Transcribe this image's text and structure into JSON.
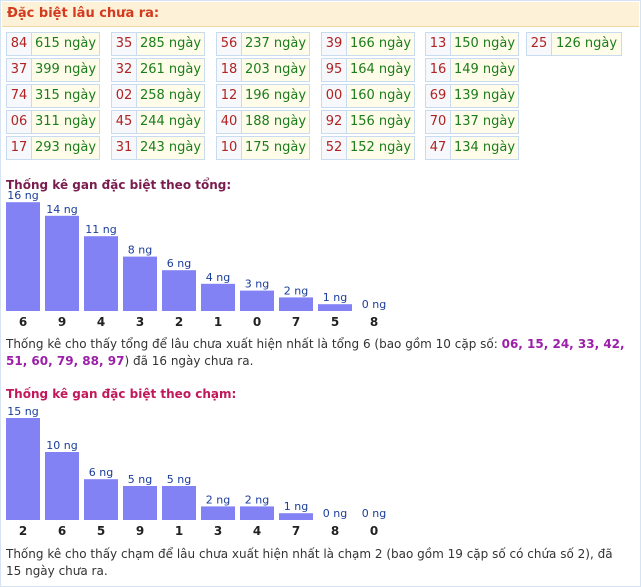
{
  "header": {
    "title": "Đặc biệt lâu chưa ra:"
  },
  "grid": {
    "columns": [
      [
        {
          "num": "84",
          "days": "615 ngày"
        },
        {
          "num": "37",
          "days": "399 ngày"
        },
        {
          "num": "74",
          "days": "315 ngày"
        },
        {
          "num": "06",
          "days": "311 ngày"
        },
        {
          "num": "17",
          "days": "293 ngày"
        }
      ],
      [
        {
          "num": "35",
          "days": "285 ngày"
        },
        {
          "num": "32",
          "days": "261 ngày"
        },
        {
          "num": "02",
          "days": "258 ngày"
        },
        {
          "num": "45",
          "days": "244 ngày"
        },
        {
          "num": "31",
          "days": "243 ngày"
        }
      ],
      [
        {
          "num": "56",
          "days": "237 ngày"
        },
        {
          "num": "18",
          "days": "203 ngày"
        },
        {
          "num": "12",
          "days": "196 ngày"
        },
        {
          "num": "40",
          "days": "188 ngày"
        },
        {
          "num": "10",
          "days": "175 ngày"
        }
      ],
      [
        {
          "num": "39",
          "days": "166 ngày"
        },
        {
          "num": "95",
          "days": "164 ngày"
        },
        {
          "num": "00",
          "days": "160 ngày"
        },
        {
          "num": "92",
          "days": "156 ngày"
        },
        {
          "num": "52",
          "days": "152 ngày"
        }
      ],
      [
        {
          "num": "13",
          "days": "150 ngày"
        },
        {
          "num": "16",
          "days": "149 ngày"
        },
        {
          "num": "69",
          "days": "139 ngày"
        },
        {
          "num": "70",
          "days": "137 ngày"
        },
        {
          "num": "47",
          "days": "134 ngày"
        }
      ],
      [
        {
          "num": "25",
          "days": "126 ngày"
        }
      ]
    ]
  },
  "section1": {
    "title": "Thống kê gan đặc biệt theo tổng:",
    "title_color": "#7a1c4e",
    "desc_prefix": "Thống kê cho thấy tổng để lâu chưa xuất hiện nhất là tổng 6 (bao gồm 10 cặp số: ",
    "desc_numbers": "06, 15, 24, 33, 42, 51, 60, 79, 88, 97",
    "desc_suffix": ") đã 16 ngày chưa ra."
  },
  "section2": {
    "title": "Thống kê gan đặc biệt theo chạm:",
    "title_color": "#c2185b",
    "desc": "Thống kê cho thấy chạm để lâu chưa xuất hiện nhất là chạm 2 (bao gồm 19 cặp số có chứa số 2), đã 15 ngày chưa ra."
  },
  "colors": {
    "bar": "#8282f5",
    "bar_label": "#1a3c9c",
    "category": "#222222"
  },
  "chart_data": [
    {
      "type": "bar",
      "title": "Thống kê gan đặc biệt theo tổng:",
      "categories": [
        "6",
        "9",
        "4",
        "3",
        "2",
        "1",
        "0",
        "7",
        "5",
        "8"
      ],
      "values": [
        16,
        14,
        11,
        8,
        6,
        4,
        3,
        2,
        1,
        0
      ],
      "labels": [
        "16 ng",
        "14 ng",
        "11 ng",
        "8 ng",
        "6 ng",
        "4 ng",
        "3 ng",
        "2 ng",
        "1 ng",
        "0 ng"
      ]
    },
    {
      "type": "bar",
      "title": "Thống kê gan đặc biệt theo chạm:",
      "categories": [
        "2",
        "6",
        "5",
        "9",
        "1",
        "3",
        "4",
        "7",
        "8",
        "0"
      ],
      "values": [
        15,
        10,
        6,
        5,
        5,
        2,
        2,
        1,
        0,
        0
      ],
      "labels": [
        "15 ng",
        "10 ng",
        "6 ng",
        "5 ng",
        "5 ng",
        "2 ng",
        "2 ng",
        "1 ng",
        "0 ng",
        "0 ng"
      ]
    }
  ]
}
